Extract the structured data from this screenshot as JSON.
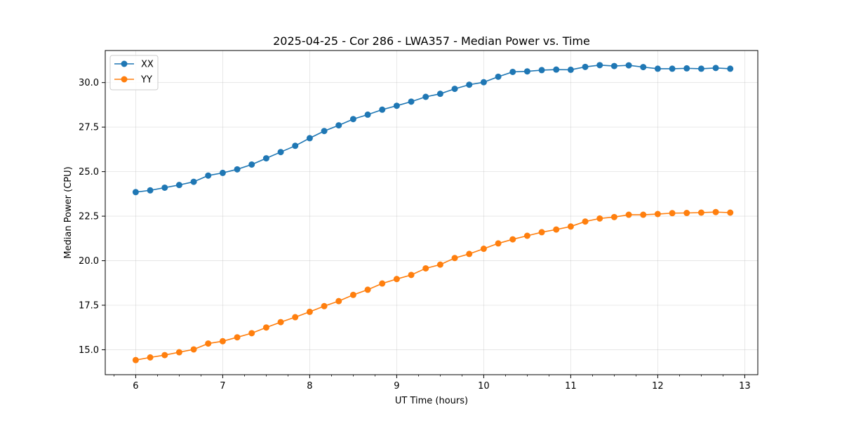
{
  "chart_data": {
    "type": "line",
    "title": "2025-04-25 - Cor 286 - LWA357 - Median Power vs. Time",
    "xlabel": "UT Time (hours)",
    "ylabel": "Median Power (CPU)",
    "xlim": [
      5.65,
      13.15
    ],
    "ylim": [
      13.6,
      31.8
    ],
    "xticks": [
      6,
      7,
      8,
      9,
      10,
      11,
      12,
      13
    ],
    "yticks": [
      15.0,
      17.5,
      20.0,
      22.5,
      25.0,
      27.5,
      30.0
    ],
    "ytick_labels": [
      "15.0",
      "17.5",
      "20.0",
      "22.5",
      "25.0",
      "27.5",
      "30.0"
    ],
    "grid": true,
    "legend_position": "top-left",
    "x": [
      6.0,
      6.1667,
      6.3333,
      6.5,
      6.6667,
      6.8333,
      7.0,
      7.1667,
      7.3333,
      7.5,
      7.6667,
      7.8333,
      8.0,
      8.1667,
      8.3333,
      8.5,
      8.6667,
      8.8333,
      9.0,
      9.1667,
      9.3333,
      9.5,
      9.6667,
      9.8333,
      10.0,
      10.1667,
      10.3333,
      10.5,
      10.6667,
      10.8333,
      11.0,
      11.1667,
      11.3333,
      11.5,
      11.6667,
      11.8333,
      12.0,
      12.1667,
      12.3333,
      12.5,
      12.6667,
      12.8333
    ],
    "series": [
      {
        "name": "XX",
        "color": "#1f77b4",
        "values": [
          23.85,
          23.95,
          24.1,
          24.25,
          24.43,
          24.78,
          24.93,
          25.13,
          25.4,
          25.75,
          26.1,
          26.45,
          26.88,
          27.28,
          27.6,
          27.95,
          28.2,
          28.48,
          28.7,
          28.93,
          29.2,
          29.37,
          29.65,
          29.88,
          30.02,
          30.33,
          30.6,
          30.63,
          30.7,
          30.73,
          30.72,
          30.88,
          30.98,
          30.93,
          30.97,
          30.87,
          30.78,
          30.78,
          30.8,
          30.78,
          30.82,
          30.78
        ]
      },
      {
        "name": "YY",
        "color": "#ff7f0e",
        "values": [
          14.42,
          14.57,
          14.7,
          14.86,
          15.02,
          15.35,
          15.48,
          15.7,
          15.93,
          16.25,
          16.55,
          16.83,
          17.13,
          17.45,
          17.73,
          18.08,
          18.37,
          18.72,
          18.97,
          19.2,
          19.57,
          19.78,
          20.15,
          20.38,
          20.67,
          20.97,
          21.2,
          21.4,
          21.6,
          21.75,
          21.92,
          22.2,
          22.37,
          22.45,
          22.58,
          22.58,
          22.62,
          22.67,
          22.68,
          22.7,
          22.73,
          22.7
        ]
      }
    ]
  }
}
